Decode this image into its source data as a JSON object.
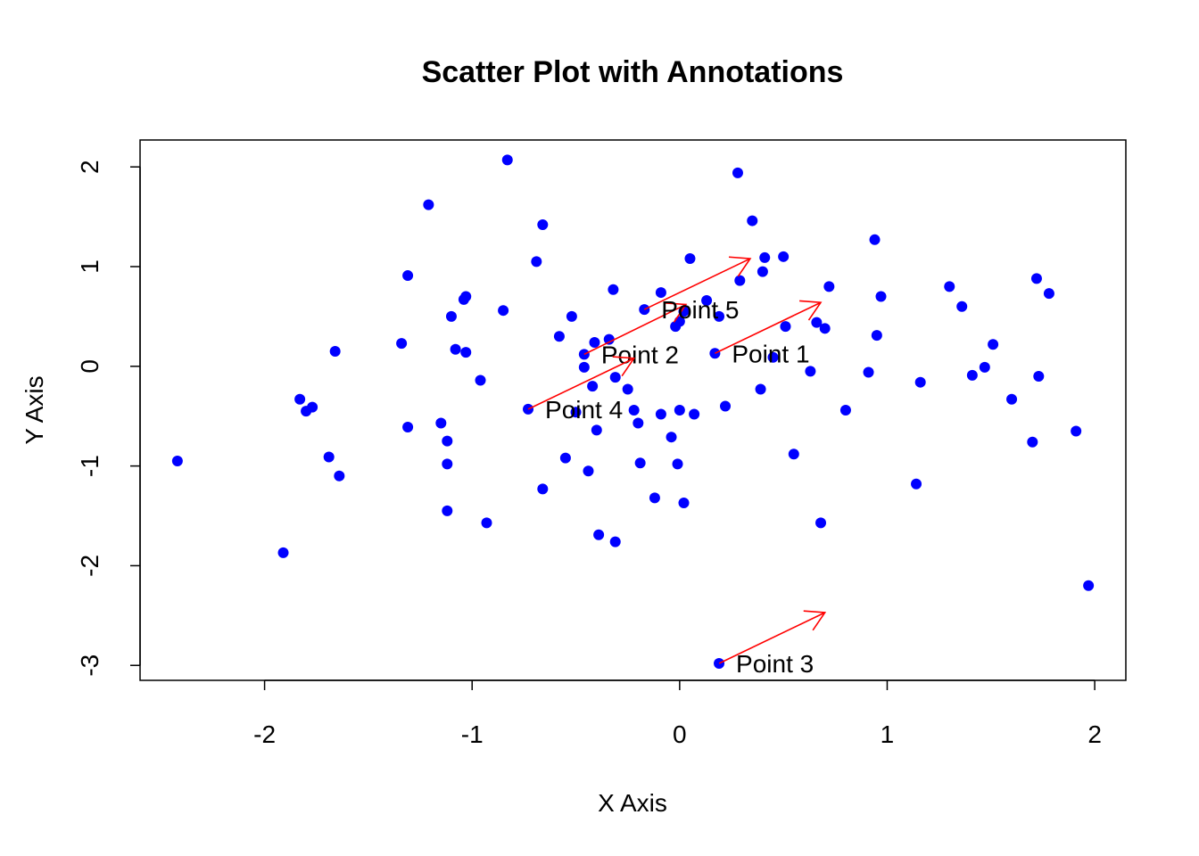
{
  "chart_data": {
    "type": "scatter",
    "title": "Scatter Plot with Annotations",
    "xlabel": "X Axis",
    "ylabel": "Y Axis",
    "xlim": [
      -2.6,
      2.15
    ],
    "ylim": [
      -3.15,
      2.27
    ],
    "x_ticks": [
      -2,
      -1,
      0,
      1,
      2
    ],
    "y_ticks": [
      -3,
      -2,
      -1,
      0,
      1,
      2
    ],
    "x_tick_labels": [
      "-2",
      "-1",
      "0",
      "1",
      "2"
    ],
    "y_tick_labels": [
      "-3",
      "-2",
      "-1",
      "0",
      "1",
      "2"
    ],
    "point_color": "#0000ff",
    "arrow_color": "#ff0000",
    "grid": false,
    "legend": "none",
    "points": [
      {
        "x": -2.42,
        "y": -0.95
      },
      {
        "x": -1.91,
        "y": -1.87
      },
      {
        "x": -1.83,
        "y": -0.33
      },
      {
        "x": -1.8,
        "y": -0.45
      },
      {
        "x": -1.77,
        "y": -0.41
      },
      {
        "x": -1.69,
        "y": -0.91
      },
      {
        "x": -1.66,
        "y": 0.15
      },
      {
        "x": -1.64,
        "y": -1.1
      },
      {
        "x": -1.34,
        "y": 0.23
      },
      {
        "x": -1.31,
        "y": 0.91
      },
      {
        "x": -1.31,
        "y": -0.61
      },
      {
        "x": -1.21,
        "y": 1.62
      },
      {
        "x": -1.15,
        "y": -0.57
      },
      {
        "x": -1.12,
        "y": -0.75
      },
      {
        "x": -1.12,
        "y": -0.98
      },
      {
        "x": -1.12,
        "y": -1.45
      },
      {
        "x": -1.1,
        "y": 0.5
      },
      {
        "x": -1.08,
        "y": 0.17
      },
      {
        "x": -1.04,
        "y": 0.67
      },
      {
        "x": -1.03,
        "y": 0.7
      },
      {
        "x": -1.03,
        "y": 0.14
      },
      {
        "x": -0.96,
        "y": -0.14
      },
      {
        "x": -0.93,
        "y": -1.57
      },
      {
        "x": -0.85,
        "y": 0.56
      },
      {
        "x": -0.83,
        "y": 2.07
      },
      {
        "x": -0.69,
        "y": 1.05
      },
      {
        "x": -0.66,
        "y": 1.42
      },
      {
        "x": -0.66,
        "y": -1.23
      },
      {
        "x": -0.58,
        "y": 0.3
      },
      {
        "x": -0.55,
        "y": -0.92
      },
      {
        "x": -0.52,
        "y": 0.5
      },
      {
        "x": -0.5,
        "y": -0.46
      },
      {
        "x": -0.46,
        "y": 0.12
      },
      {
        "x": -0.46,
        "y": -0.01
      },
      {
        "x": -0.44,
        "y": -1.05
      },
      {
        "x": -0.42,
        "y": -0.2
      },
      {
        "x": -0.41,
        "y": 0.24
      },
      {
        "x": -0.4,
        "y": -0.64
      },
      {
        "x": -0.39,
        "y": -1.69
      },
      {
        "x": -0.34,
        "y": 0.27
      },
      {
        "x": -0.32,
        "y": 0.77
      },
      {
        "x": -0.31,
        "y": -0.11
      },
      {
        "x": -0.31,
        "y": -1.76
      },
      {
        "x": -0.25,
        "y": -0.23
      },
      {
        "x": -0.22,
        "y": -0.44
      },
      {
        "x": -0.2,
        "y": -0.57
      },
      {
        "x": -0.19,
        "y": -0.97
      },
      {
        "x": -0.17,
        "y": 0.57
      },
      {
        "x": -0.12,
        "y": -1.32
      },
      {
        "x": -0.09,
        "y": 0.74
      },
      {
        "x": -0.09,
        "y": -0.48
      },
      {
        "x": -0.04,
        "y": -0.71
      },
      {
        "x": -0.02,
        "y": 0.4
      },
      {
        "x": -0.01,
        "y": -0.98
      },
      {
        "x": 0.0,
        "y": -0.44
      },
      {
        "x": 0.02,
        "y": -1.37
      },
      {
        "x": 0.02,
        "y": 0.55
      },
      {
        "x": 0.05,
        "y": 1.08
      },
      {
        "x": 0.07,
        "y": -0.48
      },
      {
        "x": 0.13,
        "y": 0.66
      },
      {
        "x": 0.19,
        "y": 0.5
      },
      {
        "x": 0.22,
        "y": -0.4
      },
      {
        "x": 0.28,
        "y": 1.94
      },
      {
        "x": 0.29,
        "y": 0.86
      },
      {
        "x": 0.35,
        "y": 1.46
      },
      {
        "x": 0.39,
        "y": -0.23
      },
      {
        "x": 0.4,
        "y": 0.95
      },
      {
        "x": 0.41,
        "y": 1.09
      },
      {
        "x": 0.45,
        "y": 0.09
      },
      {
        "x": 0.5,
        "y": 1.1
      },
      {
        "x": 0.51,
        "y": 0.4
      },
      {
        "x": 0.55,
        "y": -0.88
      },
      {
        "x": 0.63,
        "y": -0.05
      },
      {
        "x": 0.66,
        "y": 0.44
      },
      {
        "x": 0.68,
        "y": -1.57
      },
      {
        "x": 0.7,
        "y": 0.38
      },
      {
        "x": 0.72,
        "y": 0.8
      },
      {
        "x": 0.8,
        "y": -0.44
      },
      {
        "x": 0.91,
        "y": -0.06
      },
      {
        "x": 0.94,
        "y": 1.27
      },
      {
        "x": 0.95,
        "y": 0.31
      },
      {
        "x": 0.97,
        "y": 0.7
      },
      {
        "x": 1.14,
        "y": -1.18
      },
      {
        "x": 1.16,
        "y": -0.16
      },
      {
        "x": 1.3,
        "y": 0.8
      },
      {
        "x": 1.36,
        "y": 0.6
      },
      {
        "x": 1.41,
        "y": -0.09
      },
      {
        "x": 1.47,
        "y": -0.01
      },
      {
        "x": 1.51,
        "y": 0.22
      },
      {
        "x": 1.6,
        "y": -0.33
      },
      {
        "x": 1.7,
        "y": -0.76
      },
      {
        "x": 1.72,
        "y": 0.88
      },
      {
        "x": 1.73,
        "y": -0.1
      },
      {
        "x": 1.78,
        "y": 0.73
      },
      {
        "x": 1.91,
        "y": -0.65
      },
      {
        "x": 1.97,
        "y": -2.2
      },
      {
        "x": 0.17,
        "y": 0.13
      },
      {
        "x": -0.73,
        "y": -0.43
      },
      {
        "x": 0.19,
        "y": -2.98
      },
      {
        "x": 0.0,
        "y": 0.45
      }
    ],
    "annotations": [
      {
        "label": "Point 1",
        "x": 0.17,
        "y": 0.13,
        "arrow_to": [
          0.68,
          0.64
        ]
      },
      {
        "label": "Point 2",
        "x": -0.46,
        "y": 0.12,
        "arrow_to": [
          0.03,
          0.62
        ]
      },
      {
        "label": "Point 3",
        "x": 0.19,
        "y": -2.98,
        "arrow_to": [
          0.7,
          -2.47
        ]
      },
      {
        "label": "Point 4",
        "x": -0.73,
        "y": -0.43,
        "arrow_to": [
          -0.22,
          0.08
        ]
      },
      {
        "label": "Point 5",
        "x": -0.17,
        "y": 0.57,
        "arrow_to": [
          0.34,
          1.08
        ]
      }
    ]
  }
}
